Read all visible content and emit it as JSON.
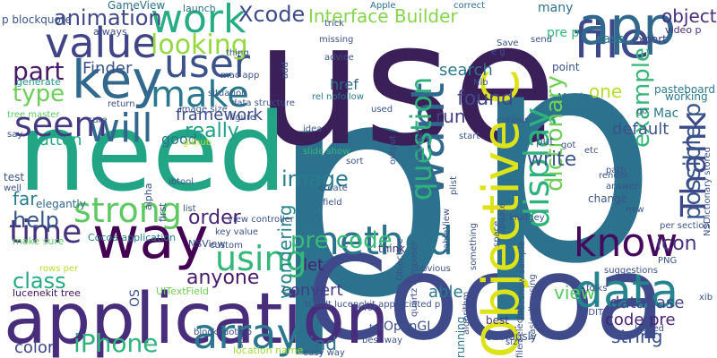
{
  "words": [
    {
      "text": "p",
      "color": "#2c728e"
    },
    {
      "text": "use",
      "color": "#3b1f59"
    },
    {
      "text": "need",
      "color": "#21a585"
    },
    {
      "text": "Cocoa",
      "color": "#3f4a8a"
    },
    {
      "text": "application",
      "color": "#472d7b"
    },
    {
      "text": "p",
      "color": "#2c728e"
    },
    {
      "text": "want",
      "color": "#31688e"
    },
    {
      "text": "Objective C",
      "color": "#dde318"
    },
    {
      "text": "way",
      "color": "#440154"
    },
    {
      "text": "file",
      "color": "#3e4989"
    },
    {
      "text": "value",
      "color": "#414487"
    },
    {
      "text": "key",
      "color": "#31688e"
    },
    {
      "text": "app",
      "color": "#31688e"
    },
    {
      "text": "know",
      "color": "#450a5c"
    },
    {
      "text": "method",
      "color": "#2c738e"
    },
    {
      "text": "data",
      "color": "#25848e"
    },
    {
      "text": "array",
      "color": "#2a788e"
    },
    {
      "text": "iPhone",
      "color": "#2fb47c"
    },
    {
      "text": "user",
      "color": "#3b528b"
    },
    {
      "text": "strong",
      "color": "#5ec962"
    },
    {
      "text": "using",
      "color": "#35b779"
    },
    {
      "text": "work",
      "color": "#27ad81"
    },
    {
      "text": "will",
      "color": "#31688e"
    },
    {
      "text": "Thank",
      "color": "#3e4989"
    },
    {
      "text": "question",
      "color": "#2db27d"
    },
    {
      "text": "time",
      "color": "#46327e"
    },
    {
      "text": "make",
      "color": "#2a788e"
    },
    {
      "text": "seem",
      "color": "#443983"
    },
    {
      "text": "display",
      "color": "#2db27d"
    },
    {
      "text": "example",
      "color": "#35b779"
    },
    {
      "text": "help",
      "color": "#39558c"
    },
    {
      "text": "class",
      "color": "#25ab82"
    },
    {
      "text": "part",
      "color": "#48186a"
    },
    {
      "text": "type",
      "color": "#6ccd5a"
    },
    {
      "text": "looking",
      "color": "#95d840"
    },
    {
      "text": "Xcode",
      "color": "#3e4a89"
    },
    {
      "text": "Interface Builder",
      "color": "#85d54a"
    },
    {
      "text": "animation",
      "color": "#3f4889"
    },
    {
      "text": "image",
      "color": "#287c8e"
    },
    {
      "text": "pre code",
      "color": "#38b977"
    },
    {
      "text": "convert",
      "color": "#433d84"
    },
    {
      "text": "database",
      "color": "#404588"
    },
    {
      "text": "code pre",
      "color": "#482374"
    },
    {
      "text": "possible p",
      "color": "#39568c"
    },
    {
      "text": "dictionary",
      "color": "#6ece58"
    },
    {
      "text": "one",
      "color": "#b5de2b"
    },
    {
      "text": "default",
      "color": "#3b528b"
    },
    {
      "text": "icon",
      "color": "#46337f"
    },
    {
      "text": "view",
      "color": "#5cc863"
    },
    {
      "text": "string",
      "color": "#3b518b"
    },
    {
      "text": "write",
      "color": "#3a548c"
    },
    {
      "text": "found",
      "color": "#404688"
    },
    {
      "text": "run",
      "color": "#433e85"
    },
    {
      "text": "search",
      "color": "#2a768e"
    },
    {
      "text": "Finder",
      "color": "#3b528b"
    },
    {
      "text": "framework",
      "color": "#3e4c8a"
    },
    {
      "text": "really",
      "color": "#1f9e89"
    },
    {
      "text": "order",
      "color": "#482475"
    },
    {
      "text": "wondering",
      "color": "#25848e"
    },
    {
      "text": "anyone",
      "color": "#481b6d"
    },
    {
      "text": "able",
      "color": "#2a788e"
    },
    {
      "text": "find",
      "color": "#2d718e"
    },
    {
      "text": "color",
      "color": "#3f4788"
    },
    {
      "text": "button",
      "color": "#22a884"
    },
    {
      "text": "far",
      "color": "#277f8e"
    },
    {
      "text": "lucenekit tree",
      "color": "#471063"
    },
    {
      "text": "Cocoa application",
      "color": "#287d8e"
    },
    {
      "text": "UITextField",
      "color": "#6ece58"
    },
    {
      "text": "location name",
      "color": "#9fda3a"
    },
    {
      "text": "blockquote p",
      "color": "#3d4e8a"
    },
    {
      "text": "OpenGL",
      "color": "#3b518b"
    },
    {
      "text": "best",
      "color": "#46307e"
    },
    {
      "text": "obviously",
      "color": "#3a548c"
    },
    {
      "text": "running",
      "color": "#2a778e"
    },
    {
      "text": "let",
      "color": "#481f70"
    },
    {
      "text": "think",
      "color": "#472c7a"
    },
    {
      "text": "obvious",
      "color": "#3b528b"
    },
    {
      "text": "href",
      "color": "#31688e"
    },
    {
      "text": "case",
      "color": "#287c8e"
    },
    {
      "text": "export",
      "color": "#433e85"
    },
    {
      "text": "pre p",
      "color": "#35b779"
    },
    {
      "text": "Mac",
      "color": "#2a788e"
    },
    {
      "text": "Maybe",
      "color": "#2a788e"
    },
    {
      "text": "working",
      "color": "#2a788e"
    },
    {
      "text": "pasteboard",
      "color": "#2a788e"
    },
    {
      "text": "point",
      "color": "#3b528b"
    },
    {
      "text": "video p",
      "color": "#472c7a"
    },
    {
      "text": "object",
      "color": "#472d7b"
    },
    {
      "text": "many",
      "color": "#2c728e"
    },
    {
      "text": "GameView",
      "color": "#2d708e"
    },
    {
      "text": "launch",
      "color": "#2d708e"
    },
    {
      "text": "Apple",
      "color": "#2d708e"
    },
    {
      "text": "correct",
      "color": "#2d708e"
    },
    {
      "text": "p blockquote",
      "color": "#3b528b"
    },
    {
      "text": "generate",
      "color": "#20928c"
    },
    {
      "text": "return",
      "color": "#3b528b"
    },
    {
      "text": "sure",
      "color": "#3b528b"
    },
    {
      "text": "good",
      "color": "#2c728e"
    },
    {
      "text": "say",
      "color": "#3b528b"
    },
    {
      "text": "test",
      "color": "#3b528b"
    },
    {
      "text": "well",
      "color": "#3b528b"
    },
    {
      "text": "elegantly",
      "color": "#31688e"
    },
    {
      "text": "make sure",
      "color": "#5ec962"
    },
    {
      "text": "rows per",
      "color": "#b5de2b"
    },
    {
      "text": "key value",
      "color": "#3b528b"
    },
    {
      "text": "custom",
      "color": "#3b528b"
    },
    {
      "text": "NSView",
      "color": "#3b528b"
    },
    {
      "text": "view controller",
      "color": "#3b528b"
    },
    {
      "text": "list",
      "color": "#3b528b"
    },
    {
      "text": "first",
      "color": "#3b528b"
    },
    {
      "text": "alpha",
      "color": "#3b528b"
    },
    {
      "text": "ibtool",
      "color": "#3b528b"
    },
    {
      "text": "github",
      "color": "#b5de2b"
    },
    {
      "text": "figure",
      "color": "#3b528b"
    },
    {
      "text": "data structure",
      "color": "#3b528b"
    },
    {
      "text": "image size",
      "color": "#3b528b"
    },
    {
      "text": "situation",
      "color": "#3b528b"
    },
    {
      "text": "thing",
      "color": "#3b528b"
    },
    {
      "text": "mac app",
      "color": "#3b528b"
    },
    {
      "text": "always",
      "color": "#3b528b"
    },
    {
      "text": "trick",
      "color": "#3b528b"
    },
    {
      "text": "rel nofollow",
      "color": "#2a788e"
    },
    {
      "text": "idea",
      "color": "#3b528b"
    },
    {
      "text": "slide show",
      "color": "#35b779"
    },
    {
      "text": "sort",
      "color": "#3b528b"
    },
    {
      "text": "create",
      "color": "#3b528b"
    },
    {
      "text": "field",
      "color": "#3b528b"
    },
    {
      "text": "missing",
      "color": "#3b528b"
    },
    {
      "text": "advice",
      "color": "#3b528b"
    },
    {
      "text": "used",
      "color": "#3b528b"
    },
    {
      "text": "output",
      "color": "#3b528b"
    },
    {
      "text": "wonder",
      "color": "#3b528b"
    },
    {
      "text": "curious",
      "color": "#3b528b"
    },
    {
      "text": "start",
      "color": "#3b528b"
    },
    {
      "text": "put",
      "color": "#3b528b"
    },
    {
      "text": "got",
      "color": "#3b528b"
    },
    {
      "text": "etc",
      "color": "#3b528b"
    },
    {
      "text": "path",
      "color": "#3b528b"
    },
    {
      "text": "render",
      "color": "#3b528b"
    },
    {
      "text": "answer",
      "color": "#3b528b"
    },
    {
      "text": "change",
      "color": "#3b528b"
    },
    {
      "text": "suggestions",
      "color": "#3b528b"
    },
    {
      "text": "PNG",
      "color": "#3b528b"
    },
    {
      "text": "new",
      "color": "#3b528b"
    },
    {
      "text": "kludgey",
      "color": "#3b528b"
    },
    {
      "text": "plist",
      "color": "#3b528b"
    },
    {
      "text": "space",
      "color": "#3b528b"
    },
    {
      "text": "update",
      "color": "#3b528b"
    },
    {
      "text": "tableView",
      "color": "#3b528b"
    },
    {
      "text": "something",
      "color": "#3b528b"
    },
    {
      "text": "folks",
      "color": "#3b528b"
    },
    {
      "text": "EDIT",
      "color": "#3b528b"
    },
    {
      "text": "looked",
      "color": "#3b528b"
    },
    {
      "text": "size",
      "color": "#3b528b"
    },
    {
      "text": "error",
      "color": "#3b528b"
    },
    {
      "text": "tell",
      "color": "#3b528b"
    },
    {
      "text": "easy way",
      "color": "#3b528b"
    },
    {
      "text": "best way",
      "color": "#3b528b"
    },
    {
      "text": "tcurdt lucenekit appreciated p",
      "color": "#3b528b"
    },
    {
      "text": "algorithm",
      "color": "#3b528b"
    },
    {
      "text": "basically using",
      "color": "#3b528b"
    },
    {
      "text": "slideshow sample",
      "color": "#3b528b"
    },
    {
      "text": "file selector",
      "color": "#3b528b"
    },
    {
      "text": "using Objective",
      "color": "#3b528b"
    },
    {
      "text": "quartz composer",
      "color": "#3b528b"
    },
    {
      "text": "per section",
      "color": "#3b528b"
    },
    {
      "text": "NSDictionary stored",
      "color": "#3b528b"
    },
    {
      "text": "xib",
      "color": "#3b528b"
    },
    {
      "text": "go",
      "color": "#3b528b"
    },
    {
      "text": "Save",
      "color": "#3b528b"
    },
    {
      "text": "send",
      "color": "#3b528b"
    },
    {
      "text": "Nib",
      "color": "#3b528b"
    },
    {
      "text": "add",
      "color": "#3b528b"
    },
    {
      "text": "OS",
      "color": "#3b528b"
    },
    {
      "text": "show",
      "color": "#3b528b"
    },
    {
      "text": "tree master",
      "color": "#5ec962"
    },
    {
      "text": "e g",
      "color": "#3b528b"
    }
  ]
}
